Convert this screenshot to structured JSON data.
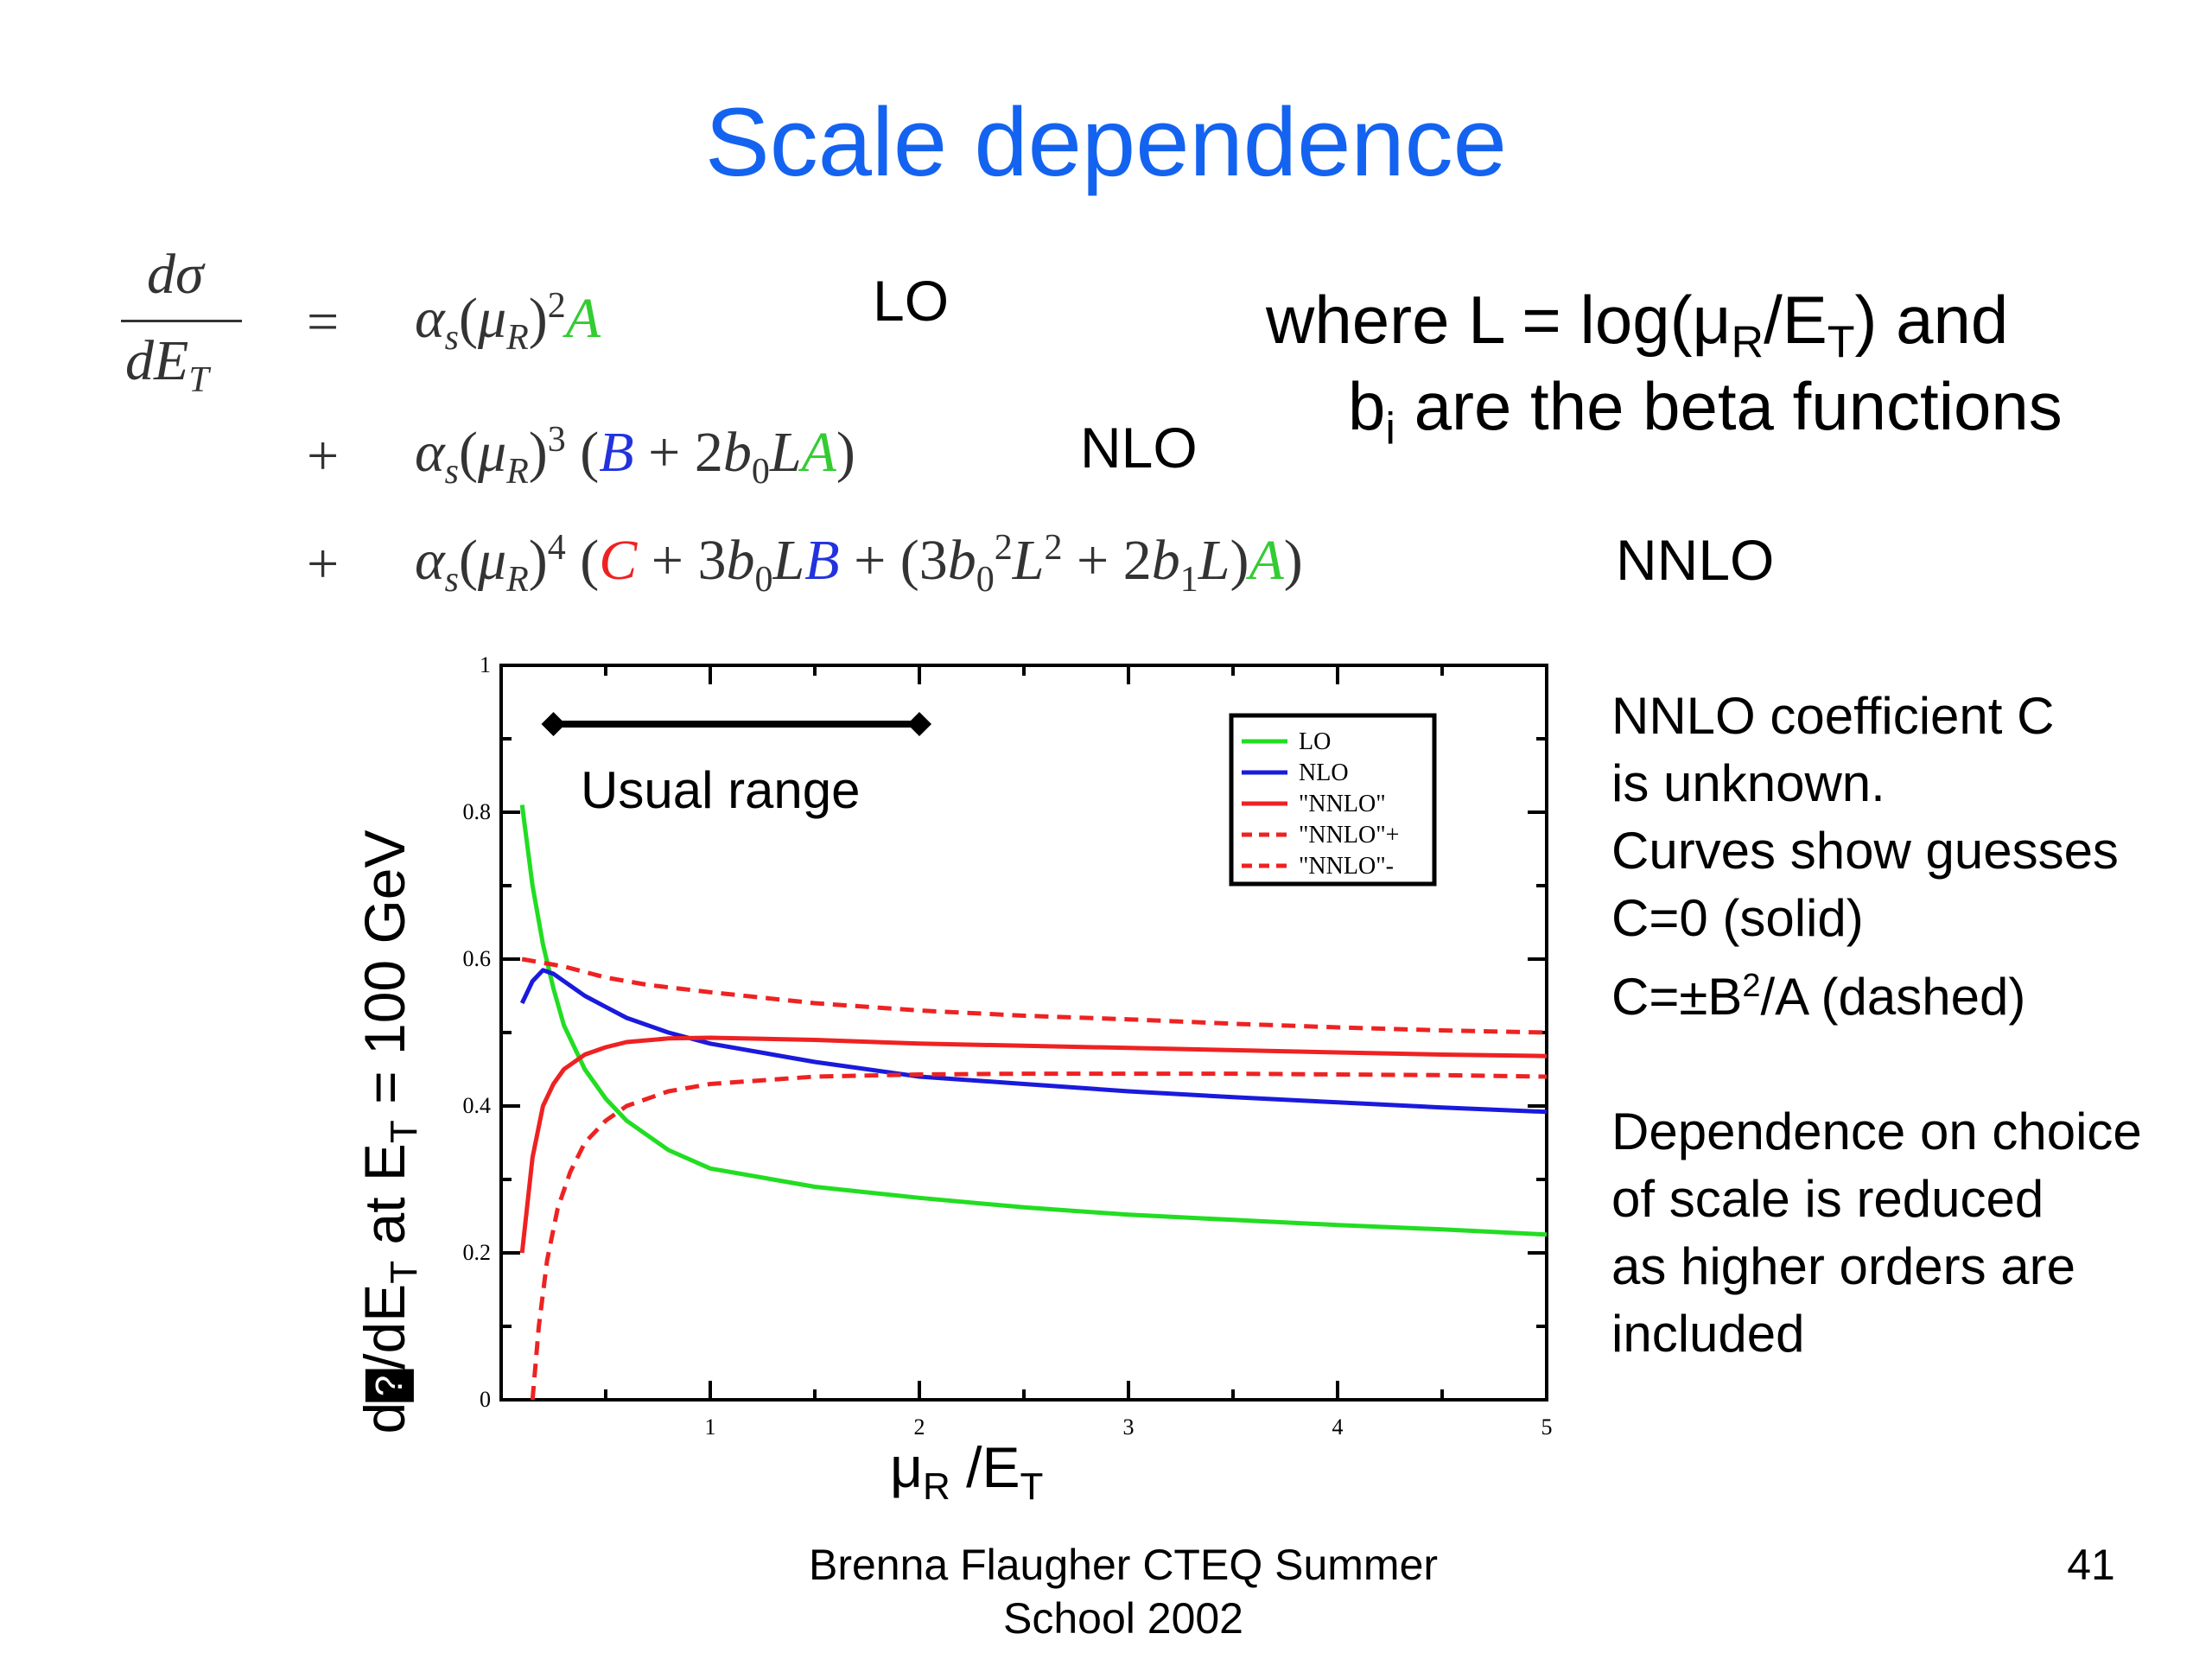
{
  "slide": {
    "title": "Scale dependence",
    "page_number": "41",
    "footer_line1": "Brenna Flaugher CTEQ Summer",
    "footer_line2": "School 2002"
  },
  "equation": {
    "lhs_numerator": "dσ",
    "lhs_denominator": "dE",
    "lhs_denominator_sub": "T",
    "lo_label": "LO",
    "nlo_label": "NLO",
    "nnlo_label": "NNLO"
  },
  "note": {
    "line1_pre": "where L = log(μ",
    "line1_sub1": "R",
    "line1_mid": "/E",
    "line1_sub2": "T",
    "line1_post": ") and",
    "line2_pre": "b",
    "line2_sub": "i",
    "line2_post": " are the beta functions"
  },
  "side_text": {
    "line1": "NNLO coefficient C",
    "line2": "is unknown.",
    "line3": "Curves show guesses",
    "line4": "C=0 (solid)",
    "line5_pre": "C=±B",
    "line5_sup": "2",
    "line5_post": "/A (dashed)",
    "line6": "Dependence on choice",
    "line7": "of scale is reduced",
    "line8": "as higher orders are",
    "line9": "included"
  },
  "chart_data": {
    "type": "line",
    "xlabel_main": "μ",
    "xlabel_sub1": "R",
    "xlabel_mid": " /E",
    "xlabel_sub2": "T",
    "ylabel_pre": "d",
    "ylabel_glyph": "?",
    "ylabel_mid1": "/dE",
    "ylabel_sub1": "T",
    "ylabel_mid2": " at E",
    "ylabel_sub2": "T",
    "ylabel_post": " = 100 GeV",
    "xlim": [
      0,
      5
    ],
    "ylim": [
      0,
      1
    ],
    "x_ticks": [
      "1",
      "2",
      "3",
      "4",
      "5"
    ],
    "y_ticks": [
      "0",
      "0.2",
      "0.4",
      "0.6",
      "0.8",
      "1"
    ],
    "grid": false,
    "legend_position": "top-right",
    "annotation": {
      "text": "Usual range",
      "x_range": [
        0.25,
        2.0
      ],
      "y": 0.92
    },
    "series": [
      {
        "name": "LO",
        "color": "#22dd22",
        "dash": false,
        "x": [
          0.1,
          0.15,
          0.2,
          0.25,
          0.3,
          0.4,
          0.5,
          0.6,
          0.8,
          1.0,
          1.5,
          2.0,
          2.5,
          3.0,
          3.5,
          4.0,
          4.5,
          5.0
        ],
        "y": [
          0.81,
          0.7,
          0.62,
          0.56,
          0.51,
          0.45,
          0.41,
          0.38,
          0.34,
          0.315,
          0.29,
          0.275,
          0.262,
          0.252,
          0.245,
          0.238,
          0.232,
          0.225
        ]
      },
      {
        "name": "NLO",
        "color": "#1a1add",
        "dash": false,
        "x": [
          0.1,
          0.15,
          0.2,
          0.25,
          0.3,
          0.4,
          0.5,
          0.6,
          0.8,
          1.0,
          1.5,
          2.0,
          2.5,
          3.0,
          3.5,
          4.0,
          4.5,
          5.0
        ],
        "y": [
          0.54,
          0.57,
          0.585,
          0.58,
          0.57,
          0.55,
          0.535,
          0.52,
          0.5,
          0.485,
          0.46,
          0.44,
          0.43,
          0.42,
          0.412,
          0.405,
          0.398,
          0.392
        ]
      },
      {
        "name": "\"NNLO\"",
        "color": "#ee2222",
        "dash": false,
        "x": [
          0.1,
          0.15,
          0.2,
          0.25,
          0.3,
          0.4,
          0.5,
          0.6,
          0.8,
          1.0,
          1.5,
          2.0,
          2.5,
          3.0,
          3.5,
          4.0,
          4.5,
          5.0
        ],
        "y": [
          0.2,
          0.33,
          0.4,
          0.43,
          0.45,
          0.47,
          0.48,
          0.487,
          0.492,
          0.493,
          0.49,
          0.485,
          0.482,
          0.479,
          0.476,
          0.473,
          0.47,
          0.468
        ]
      },
      {
        "name": "\"NNLO\"+",
        "color": "#ee2222",
        "dash": true,
        "x": [
          0.1,
          0.2,
          0.3,
          0.5,
          0.7,
          1.0,
          1.5,
          2.0,
          2.5,
          3.0,
          3.5,
          4.0,
          4.5,
          5.0
        ],
        "y": [
          0.6,
          0.595,
          0.59,
          0.575,
          0.565,
          0.555,
          0.54,
          0.53,
          0.523,
          0.518,
          0.512,
          0.507,
          0.503,
          0.5
        ]
      },
      {
        "name": "\"NNLO\"-",
        "color": "#ee2222",
        "dash": true,
        "x": [
          0.15,
          0.18,
          0.22,
          0.27,
          0.33,
          0.4,
          0.5,
          0.6,
          0.8,
          1.0,
          1.5,
          2.0,
          2.5,
          3.0,
          3.5,
          4.0,
          4.5,
          5.0
        ],
        "y": [
          0.0,
          0.1,
          0.19,
          0.26,
          0.31,
          0.35,
          0.38,
          0.4,
          0.42,
          0.43,
          0.44,
          0.443,
          0.444,
          0.444,
          0.444,
          0.443,
          0.442,
          0.44
        ]
      }
    ]
  }
}
